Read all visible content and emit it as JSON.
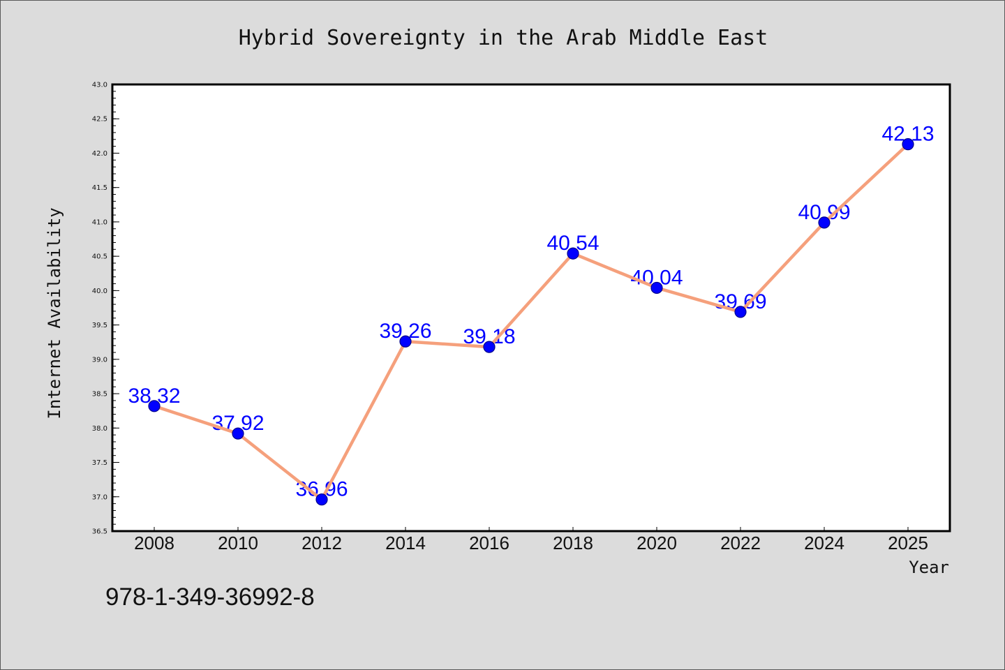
{
  "chart_data": {
    "type": "line",
    "title": "Hybrid Sovereignty in the Arab Middle East",
    "xlabel": "Year",
    "ylabel": "Internet Availability",
    "categories": [
      "2008",
      "2010",
      "2012",
      "2014",
      "2016",
      "2018",
      "2020",
      "2022",
      "2024",
      "2025"
    ],
    "values": [
      38.32,
      37.92,
      36.96,
      39.26,
      39.18,
      40.54,
      40.04,
      39.69,
      40.99,
      42.13
    ],
    "ylim": [
      36.5,
      43.0
    ],
    "yticks": [
      "36.5",
      "37.0",
      "37.5",
      "38.0",
      "38.5",
      "39.0",
      "39.5",
      "40.0",
      "40.5",
      "41.0",
      "41.5",
      "42.0",
      "42.5",
      "43.0"
    ],
    "data_labels_shown": true,
    "grid": false,
    "legend": false,
    "colors": {
      "line": "#f5a07c",
      "marker": "#0000ff",
      "marker_edge": "#00008b",
      "data_labels": "#0000ff",
      "plot_background": "#ffffff",
      "page_background": "#dcdcdc"
    }
  },
  "annotation": "978-1-349-36992-8"
}
